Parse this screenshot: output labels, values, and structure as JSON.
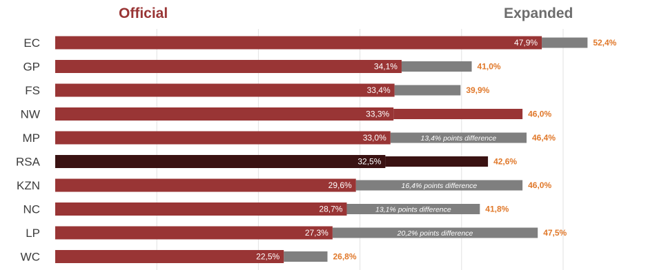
{
  "header": {
    "official_label": "Official",
    "expanded_label": "Expanded"
  },
  "colors": {
    "official": "#993535",
    "expanded": "#7f7f7f",
    "rsa_official": "#3a1212",
    "label_orange": "#e0782a",
    "header_official": "#993535",
    "header_expanded": "#6d6d6d",
    "axis_text": "#3c3c3c",
    "grid": "#e2e2e2"
  },
  "chart_data": {
    "type": "bar",
    "orientation": "horizontal",
    "categories": [
      "EC",
      "GP",
      "FS",
      "NW",
      "MP",
      "RSA",
      "KZN",
      "NC",
      "LP",
      "WC"
    ],
    "series": [
      {
        "name": "Official",
        "values": [
          47.9,
          34.1,
          33.4,
          33.3,
          33.0,
          32.5,
          29.6,
          28.7,
          27.3,
          22.5
        ],
        "labels": [
          "47,9%",
          "34,1%",
          "33,4%",
          "33,3%",
          "33,0%",
          "32,5%",
          "29,6%",
          "28,7%",
          "27,3%",
          "22,5%"
        ]
      },
      {
        "name": "Expanded",
        "values": [
          52.4,
          41.0,
          39.9,
          46.0,
          46.4,
          42.6,
          46.0,
          41.8,
          47.5,
          26.8
        ],
        "labels": [
          "52,4%",
          "41,0%",
          "39,9%",
          "46,0%",
          "46,4%",
          "42,6%",
          "46,0%",
          "41,8%",
          "47,5%",
          "26,8%"
        ]
      }
    ],
    "highlight_category": "RSA",
    "expanded_dark_categories": [
      "NW",
      "RSA"
    ],
    "annotations": [
      {
        "category": "MP",
        "text": "13,4% points difference"
      },
      {
        "category": "KZN",
        "text": "16,4% points difference"
      },
      {
        "category": "NC",
        "text": "13,1% points difference"
      },
      {
        "category": "LP",
        "text": "20,2% points difference"
      }
    ],
    "xlim": [
      0,
      60
    ],
    "grid": true,
    "gridlines": [
      10,
      20,
      30,
      40,
      50,
      60
    ]
  }
}
